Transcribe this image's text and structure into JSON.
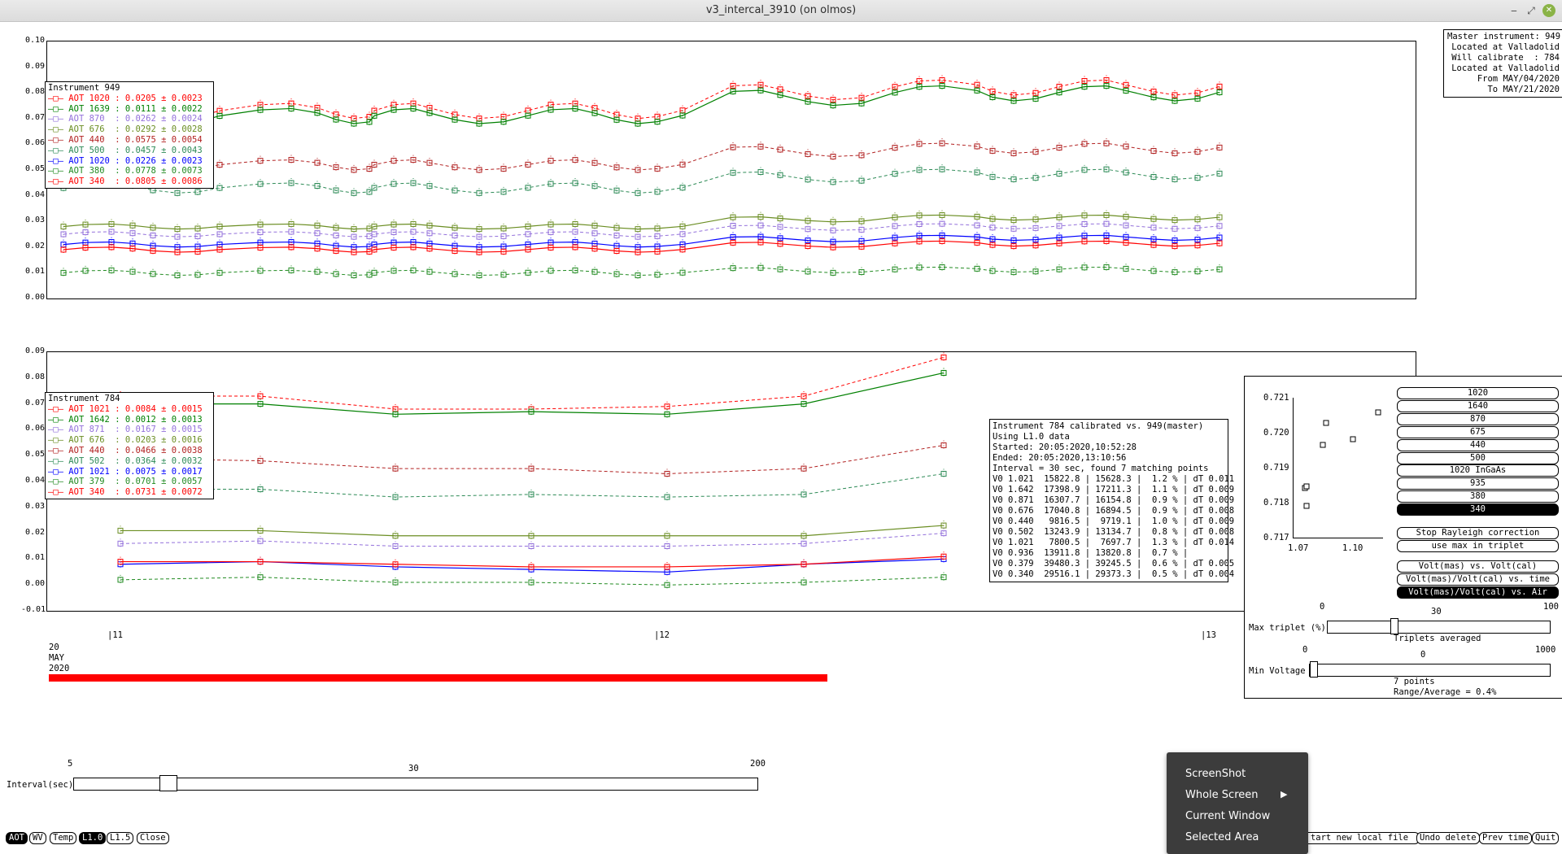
{
  "window": {
    "title": "v3_intercal_3910 (on olmos)",
    "min_icon": "minimize-icon",
    "max_icon": "maximize-icon",
    "close_icon": "close-icon"
  },
  "colors": {
    "red": "#ff0000",
    "green": "#008000",
    "lavender": "#9370db",
    "olive": "#6b8e23",
    "brown": "#b22222",
    "teal": "#2e8b57",
    "blue": "#0000ff",
    "darkgreen": "#228b22"
  },
  "top_plot": {
    "y_ticks": [
      "0.10",
      "0.09",
      "0.08",
      "0.07",
      "0.06",
      "0.05",
      "0.04",
      "0.03",
      "0.02",
      "0.01",
      "0.00"
    ],
    "legend": {
      "title": "Instrument 949",
      "rows": [
        {
          "label": "AOT 1020 :",
          "value": "0.0205 ± 0.0023",
          "color": "#ff0000"
        },
        {
          "label": "AOT 1639 :",
          "value": "0.0111 ± 0.0022",
          "color": "#008000"
        },
        {
          "label": "AOT 870  :",
          "value": "0.0262 ± 0.0024",
          "color": "#9370db"
        },
        {
          "label": "AOT 676  :",
          "value": "0.0292 ± 0.0028",
          "color": "#6b8e23"
        },
        {
          "label": "AOT 440  :",
          "value": "0.0575 ± 0.0054",
          "color": "#b22222"
        },
        {
          "label": "AOT 500  :",
          "value": "0.0457 ± 0.0043",
          "color": "#2e8b57"
        },
        {
          "label": "AOT 1020 :",
          "value": "0.0226 ± 0.0023",
          "color": "#0000ff"
        },
        {
          "label": "AOT 380  :",
          "value": "0.0778 ± 0.0073",
          "color": "#228b22"
        },
        {
          "label": "AOT 340  :",
          "value": "0.0805 ± 0.0086",
          "color": "#ff0000"
        }
      ]
    },
    "master_box": [
      "Master instrument: 949",
      "Located at Valladolid",
      "Will calibrate  : 784",
      "Located at Valladolid",
      "From MAY/04/2020",
      "To MAY/21/2020"
    ]
  },
  "bottom_plot": {
    "y_ticks": [
      "0.09",
      "0.08",
      "0.07",
      "0.06",
      "0.05",
      "0.04",
      "0.03",
      "0.02",
      "0.01",
      "0.00",
      "-0.01"
    ],
    "legend": {
      "title": "Instrument 784",
      "rows": [
        {
          "label": "AOT 1021 :",
          "value": "0.0084 ± 0.0015",
          "color": "#ff0000"
        },
        {
          "label": "AOT 1642 :",
          "value": "0.0012 ± 0.0013",
          "color": "#008000"
        },
        {
          "label": "AOT 871  :",
          "value": "0.0167 ± 0.0015",
          "color": "#9370db"
        },
        {
          "label": "AOT 676  :",
          "value": "0.0203 ± 0.0016",
          "color": "#6b8e23"
        },
        {
          "label": "AOT 440  :",
          "value": "0.0466 ± 0.0038",
          "color": "#b22222"
        },
        {
          "label": "AOT 502  :",
          "value": "0.0364 ± 0.0032",
          "color": "#2e8b57"
        },
        {
          "label": "AOT 1021 :",
          "value": "0.0075 ± 0.0017",
          "color": "#0000ff"
        },
        {
          "label": "AOT 379  :",
          "value": "0.0701 ± 0.0057",
          "color": "#228b22"
        },
        {
          "label": "AOT 340  :",
          "value": "0.0731 ± 0.0072",
          "color": "#ff0000"
        }
      ]
    },
    "info_box": [
      "Instrument 784 calibrated vs. 949(master)",
      "Using L1.0 data",
      "Started: 20:05:2020,10:52:28",
      "Ended: 20:05:2020,13:10:56",
      "Interval = 30 sec, found 7 matching points",
      "V0 1.021  15822.8 | 15628.3 |  1.2 % | dT 0.011",
      "V0 1.642  17398.9 | 17211.3 |  1.1 % | dT 0.009",
      "V0 0.871  16307.7 | 16154.8 |  0.9 % | dT 0.009",
      "V0 0.676  17040.8 | 16894.5 |  0.9 % | dT 0.008",
      "V0 0.440   9816.5 |  9719.1 |  1.0 % | dT 0.009",
      "V0 0.502  13243.9 | 13134.7 |  0.8 % | dT 0.008",
      "V0 1.021   7800.5 |  7697.7 |  1.3 % | dT 0.014",
      "V0 0.936  13911.8 | 13820.8 |  0.7 % |",
      "V0 0.379  39480.3 | 39245.5 |  0.6 % | dT 0.005",
      "V0 0.340  29516.1 | 29373.3 |  0.5 % | dT 0.004"
    ]
  },
  "x_axis": {
    "ticks": [
      "|11",
      "|12",
      "|13"
    ],
    "date": [
      "20",
      "MAY",
      "2020"
    ]
  },
  "cal_panel": {
    "mini_y_ticks": [
      "0.721",
      "0.720",
      "0.719",
      "0.718",
      "0.717"
    ],
    "mini_x_ticks": [
      "1.07",
      "1.10"
    ],
    "wavelengths": [
      "1020",
      "1640",
      "870",
      "675",
      "440",
      "500",
      "1020 InGaAs",
      "935",
      "380",
      "340"
    ],
    "selected_wavelength": "340",
    "options": [
      "Stop Rayleigh correction",
      "use max in triplet"
    ],
    "modes": [
      "Volt(mas) vs. Volt(cal)",
      "Volt(mas)/Volt(cal) vs. time",
      "Volt(mas)/Volt(cal) vs. Air Mass"
    ],
    "selected_mode": "Volt(mas)/Volt(cal) vs. Air Mass",
    "max_triplet": {
      "label": "Max triplet (%)",
      "min": "0",
      "mid": "30",
      "max": "100",
      "note": "Triplets averaged"
    },
    "min_voltage": {
      "label": "Min Voltage",
      "min": "0",
      "mid": "0",
      "max": "1000",
      "note1": "7 points",
      "note2": "Range/Average = 0.4%"
    }
  },
  "interval": {
    "label": "Interval(sec)",
    "min": "5",
    "mid": "30",
    "max": "200",
    "value": 30
  },
  "bottom_buttons": [
    "AOT",
    "WV",
    "Temp",
    "L1.0",
    "L1.5",
    "Close"
  ],
  "selected_bottom": "L1.0",
  "right_buttons": [
    "tart new local file",
    "Undo delete",
    "Prev time",
    "Quit"
  ],
  "context_menu": {
    "items": [
      "ScreenShot",
      "Whole Screen",
      "Current Window",
      "Selected Area"
    ],
    "submenu_icon": "chevron-right-icon"
  }
}
